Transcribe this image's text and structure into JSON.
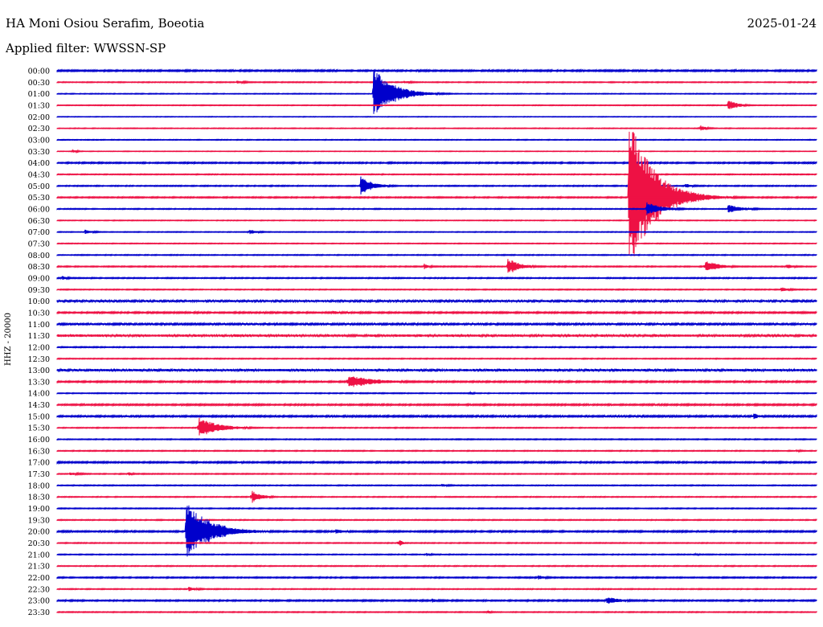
{
  "header": {
    "station": "HA Moni Osiou Serafim, Boeotia",
    "date": "2025-01-24",
    "filter": "Applied filter: WWSSN-SP"
  },
  "colors": {
    "odd": "#0000cc",
    "even": "#ee1144"
  },
  "chart_data": {
    "type": "line",
    "title": "HA Moni Osiou Serafim, Boeotia",
    "subtitle": "Applied filter: WWSSN-SP",
    "ylabel": "HHZ - 20000",
    "xlabel": "",
    "grid": false,
    "rows": [
      "00:00",
      "00:30",
      "01:00",
      "01:30",
      "02:00",
      "02:30",
      "03:00",
      "03:30",
      "04:00",
      "04:30",
      "05:00",
      "05:30",
      "06:00",
      "06:30",
      "07:00",
      "07:30",
      "08:00",
      "08:30",
      "09:00",
      "09:30",
      "10:00",
      "10:30",
      "11:00",
      "11:30",
      "12:00",
      "12:30",
      "13:00",
      "13:30",
      "14:00",
      "14:30",
      "15:00",
      "15:30",
      "16:00",
      "16:30",
      "17:00",
      "17:30",
      "18:00",
      "18:30",
      "19:00",
      "19:30",
      "20:00",
      "20:30",
      "21:00",
      "21:30",
      "22:00",
      "22:30",
      "23:00",
      "23:30"
    ],
    "row_minutes": 30,
    "noise": [
      1,
      0.6,
      0.5,
      0.5,
      0.4,
      0.5,
      0.5,
      0.4,
      0.9,
      0.6,
      0.7,
      0.8,
      0.6,
      0.5,
      0.5,
      0.5,
      0.6,
      0.7,
      0.7,
      0.6,
      1.4,
      1.0,
      1.2,
      1.6,
      0.7,
      0.6,
      1.6,
      1.0,
      0.6,
      1.0,
      1.1,
      0.6,
      0.6,
      0.6,
      1.0,
      0.6,
      0.6,
      0.6,
      0.6,
      0.6,
      1.0,
      0.6,
      0.6,
      0.6,
      0.8,
      0.6,
      0.9,
      0.6
    ],
    "events": [
      {
        "row": 2,
        "minute": 12.5,
        "amp": 33,
        "dur": 1.3
      },
      {
        "row": 1,
        "minute": 7.1,
        "amp": 2,
        "dur": 0.8
      },
      {
        "row": 1,
        "minute": 13.7,
        "amp": 2,
        "dur": 0.6
      },
      {
        "row": 3,
        "minute": 26.5,
        "amp": 7,
        "dur": 0.6
      },
      {
        "row": 5,
        "minute": 25.4,
        "amp": 4,
        "dur": 0.4
      },
      {
        "row": 7,
        "minute": 0.6,
        "amp": 2,
        "dur": 0.4
      },
      {
        "row": 10,
        "minute": 12,
        "amp": 12,
        "dur": 0.8
      },
      {
        "row": 10,
        "minute": 24.8,
        "amp": 3,
        "dur": 0.6
      },
      {
        "row": 11,
        "minute": 22.6,
        "amp": 102,
        "dur": 1.6
      },
      {
        "row": 12,
        "minute": 23.3,
        "amp": 9,
        "dur": 1.0
      },
      {
        "row": 12,
        "minute": 26.5,
        "amp": 6,
        "dur": 1.0
      },
      {
        "row": 14,
        "minute": 1.1,
        "amp": 3,
        "dur": 0.6
      },
      {
        "row": 14,
        "minute": 7.6,
        "amp": 3,
        "dur": 0.6
      },
      {
        "row": 17,
        "minute": 14.5,
        "amp": 4,
        "dur": 0.3
      },
      {
        "row": 17,
        "minute": 17.8,
        "amp": 11,
        "dur": 0.8
      },
      {
        "row": 17,
        "minute": 25.6,
        "amp": 9,
        "dur": 0.8
      },
      {
        "row": 17,
        "minute": 28.8,
        "amp": 3,
        "dur": 0.6
      },
      {
        "row": 18,
        "minute": 0.2,
        "amp": 3,
        "dur": 0.4
      },
      {
        "row": 19,
        "minute": 28.6,
        "amp": 3,
        "dur": 0.6
      },
      {
        "row": 21,
        "minute": 10.9,
        "amp": 2,
        "dur": 1.0
      },
      {
        "row": 27,
        "minute": 11.5,
        "amp": 8,
        "dur": 2.0
      },
      {
        "row": 28,
        "minute": 16.3,
        "amp": 2,
        "dur": 0.3
      },
      {
        "row": 30,
        "minute": 27.5,
        "amp": 4,
        "dur": 0.6
      },
      {
        "row": 31,
        "minute": 5.6,
        "amp": 13,
        "dur": 1.3
      },
      {
        "row": 33,
        "minute": 29.2,
        "amp": 2,
        "dur": 0.4
      },
      {
        "row": 35,
        "minute": 0.5,
        "amp": 2,
        "dur": 1.0
      },
      {
        "row": 35,
        "minute": 2.8,
        "amp": 3,
        "dur": 0.3
      },
      {
        "row": 36,
        "minute": 15.2,
        "amp": 2,
        "dur": 0.6
      },
      {
        "row": 37,
        "minute": 7.7,
        "amp": 8,
        "dur": 0.6
      },
      {
        "row": 40,
        "minute": 5.1,
        "amp": 38,
        "dur": 1.6
      },
      {
        "row": 40,
        "minute": 11,
        "amp": 3,
        "dur": 1.0
      },
      {
        "row": 40,
        "minute": 17.5,
        "amp": 2,
        "dur": 0.6
      },
      {
        "row": 41,
        "minute": 13.5,
        "amp": 6,
        "dur": 0.15
      },
      {
        "row": 42,
        "minute": 14.6,
        "amp": 2,
        "dur": 0.4
      },
      {
        "row": 42,
        "minute": 25.2,
        "amp": 2,
        "dur": 0.3
      },
      {
        "row": 44,
        "minute": 19,
        "amp": 3,
        "dur": 0.6
      },
      {
        "row": 45,
        "minute": 5.2,
        "amp": 3,
        "dur": 0.6
      },
      {
        "row": 46,
        "minute": 14.8,
        "amp": 3,
        "dur": 0.4
      },
      {
        "row": 46,
        "minute": 21.7,
        "amp": 5,
        "dur": 1.0
      },
      {
        "row": 47,
        "minute": 17,
        "amp": 2,
        "dur": 0.3
      }
    ]
  }
}
